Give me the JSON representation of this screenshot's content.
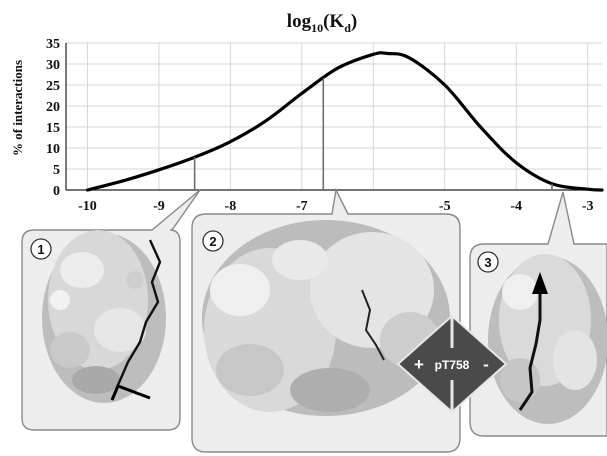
{
  "chart_data": {
    "type": "line",
    "title_main": "log",
    "title_sub": "10",
    "title_tail": "(K",
    "title_sub2": "d",
    "title_end": ")",
    "xlabel": "",
    "ylabel": "% of interactions",
    "xlim": [
      -10.3,
      -2.8
    ],
    "ylim": [
      0,
      35
    ],
    "x_ticks": [
      -10,
      -9,
      -8,
      -7,
      -5,
      -4,
      -3
    ],
    "y_ticks": [
      0,
      5,
      10,
      15,
      20,
      25,
      30,
      35
    ],
    "grid": true,
    "series": [
      {
        "x": [
          -10,
          -9.5,
          -9,
          -8.5,
          -8,
          -7.5,
          -7,
          -6.5,
          -6,
          -5.8,
          -5.5,
          -5,
          -4.5,
          -4,
          -3.5,
          -3,
          -2.8
        ],
        "values": [
          0,
          2.2,
          4.8,
          7.8,
          11.5,
          16.5,
          23,
          29,
          32.3,
          32.5,
          31.5,
          25,
          15,
          6.5,
          1.5,
          0.2,
          0
        ]
      }
    ],
    "markers": [
      {
        "x": -8.5,
        "panel": "1"
      },
      {
        "x": -6.7,
        "panel": "2"
      },
      {
        "x": -3.5,
        "panel": "3"
      }
    ]
  },
  "panels": [
    {
      "id": "panel-1",
      "number": "1"
    },
    {
      "id": "panel-2",
      "number": "2"
    },
    {
      "id": "panel-3",
      "number": "3"
    }
  ],
  "site": {
    "label": "pT758",
    "plus": "+",
    "minus": "-"
  }
}
